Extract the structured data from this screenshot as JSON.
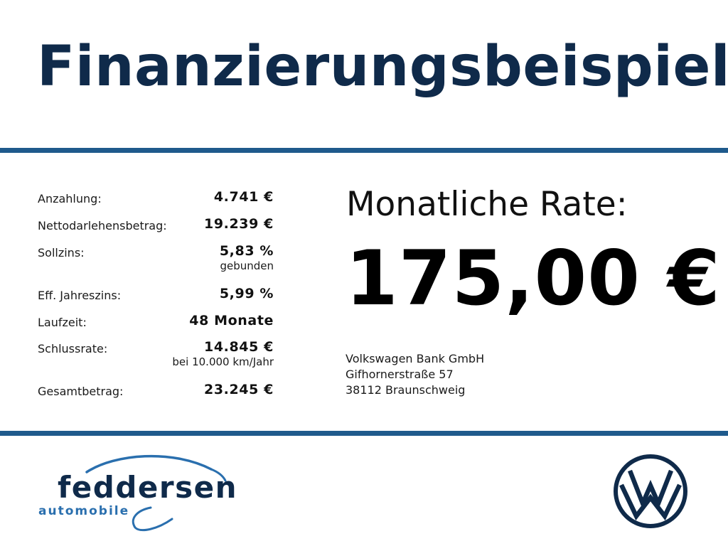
{
  "title": "Finanzierungsbeispiel",
  "terms": [
    {
      "label": "Anzahlung:",
      "value": "4.741 €",
      "note": ""
    },
    {
      "label": "Nettodarlehensbetrag:",
      "value": "19.239 €",
      "note": ""
    },
    {
      "label": "Sollzins:",
      "value": "5,83 %",
      "note": "gebunden"
    },
    {
      "label": "Eff. Jahreszins:",
      "value": "5,99 %",
      "note": ""
    },
    {
      "label": "Laufzeit:",
      "value": "48 Monate",
      "note": ""
    },
    {
      "label": "Schlussrate:",
      "value": "14.845 €",
      "note": "bei 10.000 km/Jahr"
    },
    {
      "label": "Gesamtbetrag:",
      "value": "23.245 €",
      "note": ""
    }
  ],
  "rate": {
    "label": "Monatliche Rate:",
    "value": "175,00 €"
  },
  "bank": {
    "name": "Volkswagen Bank GmbH",
    "street": "Gifhornerstraße 57",
    "city": "38112 Braunschweig"
  },
  "dealer_logo": {
    "name": "feddersen",
    "tagline": "automobile"
  },
  "colors": {
    "title": "#0f2a4a",
    "rule": "#1f5a8c",
    "dealer_blue": "#2a6fae",
    "dealer_dark": "#0f2a4a",
    "vw_blue": "#0f2a4a"
  }
}
